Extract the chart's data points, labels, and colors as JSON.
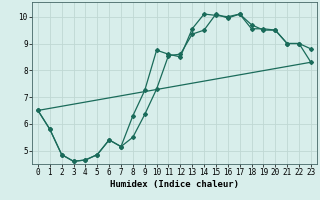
{
  "title": "",
  "xlabel": "Humidex (Indice chaleur)",
  "ylabel": "",
  "bg_color": "#d8eeeb",
  "grid_color": "#c0d8d4",
  "line_color": "#1a6b5a",
  "xlim": [
    -0.5,
    23.5
  ],
  "ylim": [
    4.5,
    10.55
  ],
  "xticks": [
    0,
    1,
    2,
    3,
    4,
    5,
    6,
    7,
    8,
    9,
    10,
    11,
    12,
    13,
    14,
    15,
    16,
    17,
    18,
    19,
    20,
    21,
    22,
    23
  ],
  "yticks": [
    5,
    6,
    7,
    8,
    9,
    10
  ],
  "line1_x": [
    0,
    1,
    2,
    3,
    4,
    5,
    6,
    7,
    8,
    9,
    10,
    11,
    12,
    13,
    14,
    15,
    16,
    17,
    18,
    19,
    20,
    21,
    22,
    23
  ],
  "line1_y": [
    6.5,
    5.8,
    4.85,
    4.6,
    4.65,
    4.85,
    5.4,
    5.15,
    5.5,
    6.35,
    7.3,
    8.55,
    8.6,
    9.35,
    9.5,
    10.1,
    9.95,
    10.1,
    9.7,
    9.5,
    9.5,
    9.0,
    9.0,
    8.8
  ],
  "line2_x": [
    0,
    1,
    2,
    3,
    4,
    5,
    6,
    7,
    8,
    9,
    10,
    11,
    12,
    13,
    14,
    15,
    16,
    17,
    18,
    19,
    20,
    21,
    22,
    23
  ],
  "line2_y": [
    6.5,
    5.8,
    4.85,
    4.6,
    4.65,
    4.85,
    5.4,
    5.15,
    6.3,
    7.25,
    8.75,
    8.6,
    8.5,
    9.55,
    10.1,
    10.05,
    10.0,
    10.1,
    9.55,
    9.55,
    9.5,
    9.0,
    9.0,
    8.3
  ],
  "line3_x": [
    0,
    23
  ],
  "line3_y": [
    6.5,
    8.3
  ],
  "marker": "D",
  "marker_size": 2.0,
  "linewidth": 0.9,
  "xlabel_fontsize": 6.5,
  "tick_fontsize": 5.5
}
